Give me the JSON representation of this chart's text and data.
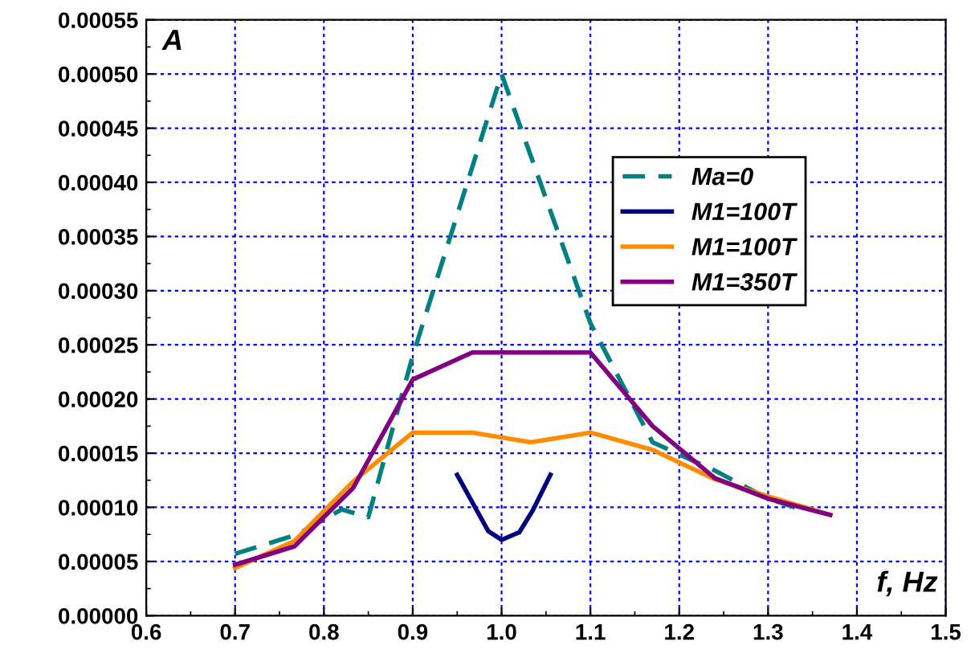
{
  "chart_data": {
    "type": "line",
    "xlabel": "f, Hz",
    "ylabel": "A",
    "xlim": [
      0.6,
      1.5
    ],
    "xticks": [
      {
        "value": 0.6,
        "label": "0.6"
      },
      {
        "value": 0.7,
        "label": "0.7"
      },
      {
        "value": 0.8,
        "label": "0.8"
      },
      {
        "value": 0.9,
        "label": "0.9"
      },
      {
        "value": 1.0,
        "label": "1.0"
      },
      {
        "value": 1.1,
        "label": "1.1"
      },
      {
        "value": 1.2,
        "label": "1.2"
      },
      {
        "value": 1.3,
        "label": "1.3"
      },
      {
        "value": 1.4,
        "label": "1.4"
      },
      {
        "value": 1.5,
        "label": "1.5"
      }
    ],
    "ylim": [
      0,
      0.00055
    ],
    "yticks": [
      {
        "value": 0,
        "label": "0.00000"
      },
      {
        "value": 5e-05,
        "label": "0.00005"
      },
      {
        "value": 0.0001,
        "label": "0.00010"
      },
      {
        "value": 0.00015,
        "label": "0.00015"
      },
      {
        "value": 0.0002,
        "label": "0.00020"
      },
      {
        "value": 0.00025,
        "label": "0.00025"
      },
      {
        "value": 0.0003,
        "label": "0.00030"
      },
      {
        "value": 0.00035,
        "label": "0.00035"
      },
      {
        "value": 0.0004,
        "label": "0.00040"
      },
      {
        "value": 0.00045,
        "label": "0.00045"
      },
      {
        "value": 0.0005,
        "label": "0.00050"
      },
      {
        "value": 0.00055,
        "label": "0.00055"
      }
    ],
    "grid": true,
    "legend": "top right",
    "marker": "none",
    "series": [
      {
        "name": "Ma=0",
        "color": "#008080",
        "line_style": "dashed",
        "x": [
          0.7,
          0.77,
          0.82,
          0.85,
          0.9,
          1.0,
          1.1,
          1.17,
          1.24,
          1.3,
          1.33
        ],
        "values": [
          5.7e-05,
          7.5e-05,
          9.8e-05,
          9.1e-05,
          0.00024,
          0.0005,
          0.00027,
          0.00016,
          0.000134,
          0.000108,
          0.0001
        ]
      },
      {
        "name": "M1=100T",
        "color": "#000080",
        "line_style": "solid",
        "x": [
          0.95,
          0.985,
          1.0,
          1.02,
          1.035,
          1.055
        ],
        "values": [
          0.00013,
          7.8e-05,
          7e-05,
          7.7e-05,
          9.7e-05,
          0.00013
        ]
      },
      {
        "name": "M1=100T",
        "color": "#ff8c00",
        "line_style": "solid",
        "x": [
          0.7,
          0.767,
          0.833,
          0.9,
          0.967,
          1.033,
          1.1,
          1.17,
          1.24,
          1.3,
          1.37
        ],
        "values": [
          4.4e-05,
          6.9e-05,
          0.000124,
          0.000169,
          0.000169,
          0.00016,
          0.000169,
          0.000153,
          0.000126,
          0.00011,
          9.3e-05
        ]
      },
      {
        "name": "M1=350T",
        "color": "#800080",
        "line_style": "solid",
        "x": [
          0.7,
          0.767,
          0.833,
          0.9,
          0.967,
          1.1,
          1.17,
          1.24,
          1.3,
          1.37
        ],
        "values": [
          4.7e-05,
          6.4e-05,
          0.000118,
          0.000218,
          0.000243,
          0.000243,
          0.000175,
          0.000127,
          0.000108,
          9.3e-05
        ]
      }
    ]
  }
}
